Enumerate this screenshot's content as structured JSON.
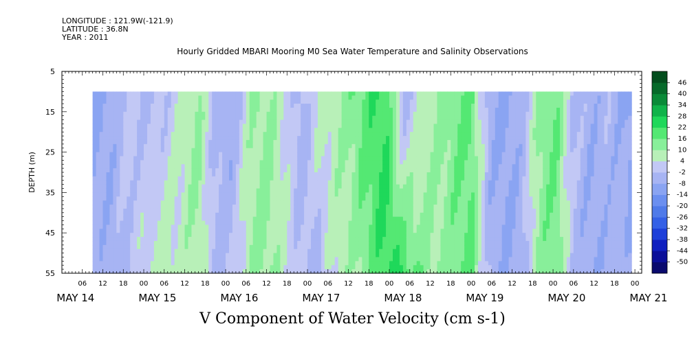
{
  "header": {
    "longitude": "LONGITUDE : 121.9W(-121.9)",
    "latitude": "LATITUDE : 36.8N",
    "year": "YEAR : 2011",
    "title": "Hourly Gridded MBARI Mooring M0 Sea Water Temperature and Salinity Observations"
  },
  "chart_data": {
    "type": "heatmap",
    "title": "Hourly Gridded MBARI Mooring M0 Sea Water Temperature and Salinity Observations",
    "xlabel": "",
    "ylabel": "DEPTH (m)",
    "bottom_title": "V Component of Water Velocity (cm s-1)",
    "ylim": [
      55,
      5
    ],
    "y_ticks": [
      5,
      15,
      25,
      35,
      45,
      55
    ],
    "x_hour_ticks": [
      "06",
      "12",
      "18",
      "00",
      "06",
      "12",
      "18",
      "00",
      "06",
      "12",
      "18",
      "00",
      "06",
      "12",
      "18",
      "00",
      "06",
      "12",
      "18",
      "00",
      "06",
      "12",
      "18",
      "00",
      "06",
      "12",
      "18",
      "00"
    ],
    "x_day_labels": [
      "MAY 14",
      "MAY 15",
      "MAY 16",
      "MAY 17",
      "MAY 18",
      "MAY 19",
      "MAY 20",
      "MAY 21"
    ],
    "x_range_hours": [
      0,
      170
    ],
    "data_extent": {
      "x_hours": [
        9,
        167
      ],
      "depth": [
        10,
        55
      ]
    },
    "colorbar": {
      "levels": [
        -50,
        -44,
        -38,
        -32,
        -26,
        -20,
        -14,
        -8,
        -2,
        4,
        10,
        16,
        22,
        28,
        34,
        40,
        46
      ],
      "labels": [
        "46",
        "40",
        "34",
        "28",
        "22",
        "16",
        "10",
        "4",
        "-2",
        "-8",
        "-14",
        "-20",
        "-26",
        "-32",
        "-38",
        "-44",
        "-50"
      ],
      "colors_low_to_high": [
        "#0a0a6e",
        "#0b0f99",
        "#0f1fbf",
        "#1d3fd9",
        "#3460e6",
        "#4f7ae9",
        "#6b8ff0",
        "#8aa4f2",
        "#a7b4f3",
        "#c2c8f5",
        "#b8f0b8",
        "#88ef9a",
        "#54e873",
        "#1fd85a",
        "#10b34a",
        "#0a8a38",
        "#066a2a",
        "#034d1d"
      ]
    },
    "series": [
      {
        "hours": [
          9,
          15,
          20,
          24,
          30,
          35,
          40,
          45,
          50,
          55,
          60,
          65,
          70,
          75,
          80,
          85,
          90,
          95,
          100,
          105,
          110,
          115,
          120,
          125,
          130,
          135,
          140,
          145,
          150,
          155,
          160,
          165,
          167
        ],
        "surface_v": [
          -12,
          -6,
          2,
          -4,
          -2,
          6,
          12,
          -4,
          -8,
          8,
          12,
          4,
          -6,
          6,
          8,
          14,
          20,
          22,
          -6,
          4,
          10,
          14,
          18,
          -6,
          -10,
          -4,
          12,
          16,
          -2,
          -6,
          -4,
          -8,
          -12
        ],
        "bottom_v": [
          -4,
          -6,
          -2,
          4,
          8,
          6,
          10,
          -4,
          -2,
          10,
          12,
          6,
          -2,
          -4,
          6,
          8,
          16,
          24,
          22,
          14,
          10,
          14,
          18,
          -4,
          -8,
          -6,
          12,
          16,
          -4,
          -8,
          -6,
          -4,
          -8
        ]
      }
    ]
  }
}
